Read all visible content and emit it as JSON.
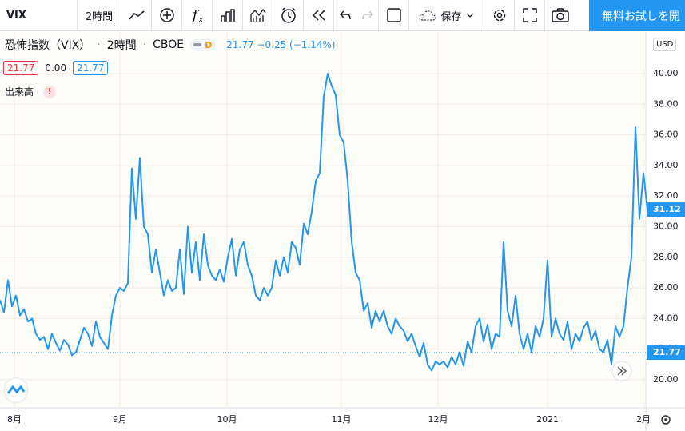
{
  "toolbar": {
    "symbol": "VIX",
    "interval": "2時間",
    "save": "保存",
    "cta": "無料お試しを開"
  },
  "legend": {
    "title": "恐怖指数（VIX）",
    "interval": "2時間",
    "exchange": "CBOE",
    "badge": "D",
    "quote": "21.77 −0.25 (−1.14%)",
    "open": "21.77",
    "change": "0.00",
    "close": "21.77",
    "volume": "出来高",
    "alert": "!"
  },
  "currency": "USD",
  "chart_data": {
    "type": "line",
    "color": "#2196f3",
    "values": [
      25.2,
      24.4,
      26.5,
      24.8,
      25.5,
      24.2,
      24.6,
      23.8,
      24.0,
      23.0,
      22.6,
      22.8,
      22.0,
      23.0,
      22.4,
      21.9,
      22.6,
      22.3,
      21.6,
      21.8,
      22.6,
      23.4,
      23.0,
      22.2,
      23.8,
      22.8,
      22.4,
      22.0,
      24.2,
      25.5,
      26.0,
      25.8,
      26.3,
      33.8,
      30.5,
      34.5,
      30.0,
      29.5,
      27.0,
      28.5,
      27.0,
      25.5,
      26.5,
      25.8,
      26.0,
      28.5,
      25.6,
      30.0,
      27.0,
      29.0,
      26.5,
      29.5,
      27.5,
      26.8,
      26.5,
      27.2,
      26.4,
      28.0,
      29.2,
      26.8,
      28.5,
      29.0,
      27.5,
      26.8,
      25.5,
      25.2,
      26.0,
      25.5,
      26.0,
      27.8,
      26.8,
      28.0,
      27.0,
      29.0,
      28.6,
      27.5,
      30.2,
      29.5,
      31.0,
      33.0,
      33.5,
      38.5,
      40.0,
      39.2,
      38.6,
      36.0,
      35.5,
      33.0,
      29.0,
      27.0,
      26.5,
      24.5,
      25.0,
      23.4,
      24.5,
      23.8,
      24.5,
      23.5,
      23.0,
      24.0,
      23.5,
      23.2,
      22.5,
      23.0,
      22.2,
      21.5,
      22.4,
      21.0,
      20.6,
      21.2,
      21.0,
      21.2,
      20.8,
      21.5,
      21.0,
      21.8,
      20.9,
      22.5,
      21.8,
      23.5,
      24.0,
      22.5,
      23.6,
      22.0,
      23.0,
      22.8,
      29.0,
      24.5,
      23.5,
      25.5,
      23.0,
      22.0,
      23.0,
      21.8,
      23.5,
      22.8,
      24.0,
      27.8,
      22.8,
      24.0,
      23.0,
      22.6,
      23.8,
      22.0,
      23.0,
      22.5,
      23.4,
      23.8,
      22.6,
      23.2,
      22.0,
      21.8,
      22.6,
      21.0,
      23.5,
      22.8,
      23.5,
      26.0,
      28.0,
      36.5,
      30.5,
      33.5,
      31.12
    ],
    "xlim": [
      0,
      161.6
    ],
    "xticks": [
      {
        "value": 3.6,
        "label": "8月"
      },
      {
        "value": 30,
        "label": "9月"
      },
      {
        "value": 56.8,
        "label": "10月"
      },
      {
        "value": 85.4,
        "label": "11月"
      },
      {
        "value": 109.6,
        "label": "12月"
      },
      {
        "value": 137,
        "label": "2021"
      },
      {
        "value": 161,
        "label": "2月"
      }
    ],
    "ylim": [
      18.17,
      42.72
    ],
    "yticks": [
      {
        "value": 20,
        "label": "20.00"
      },
      {
        "value": 22,
        "label": "22.00"
      },
      {
        "value": 24,
        "label": "24.00"
      },
      {
        "value": 26,
        "label": "26.00"
      },
      {
        "value": 28,
        "label": "28.00"
      },
      {
        "value": 30,
        "label": "30.00"
      },
      {
        "value": 32,
        "label": "32.00"
      },
      {
        "value": 34,
        "label": "34.00"
      },
      {
        "value": 36,
        "label": "36.00"
      },
      {
        "value": 38,
        "label": "38.00"
      },
      {
        "value": 40,
        "label": "40.00"
      }
    ],
    "grid": true,
    "price_labels": [
      31.12,
      21.77
    ]
  }
}
